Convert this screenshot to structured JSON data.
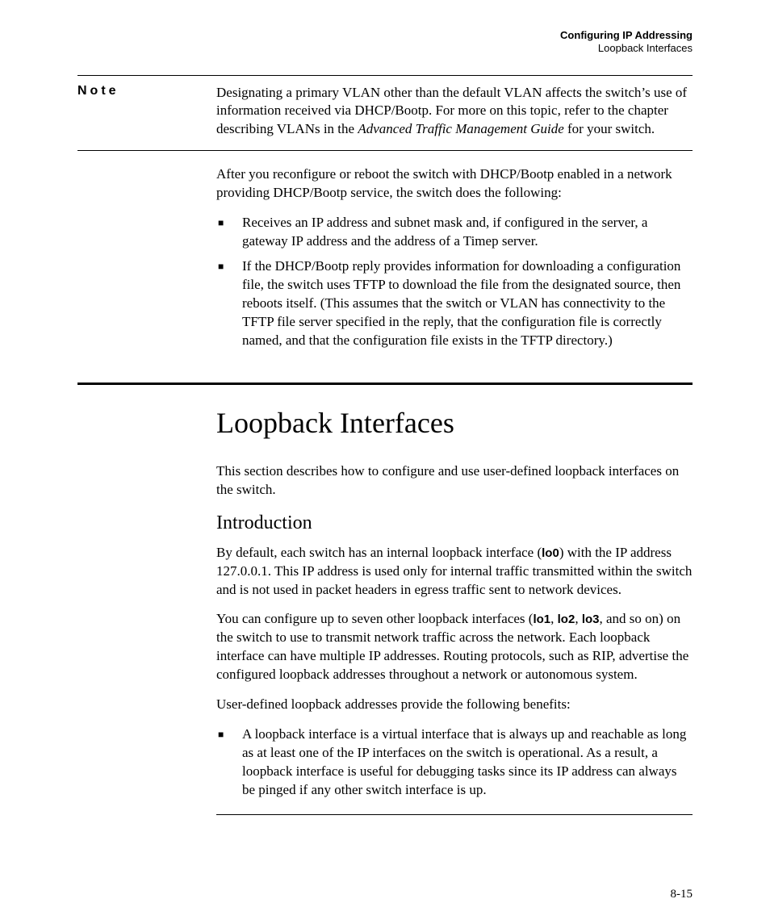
{
  "runhead": {
    "title": "Configuring IP Addressing",
    "subtitle": "Loopback Interfaces"
  },
  "note": {
    "label": "Note",
    "para_pre": "Designating a primary VLAN other than the default VLAN affects the switch’s use of information received via DHCP/Bootp. For more on this topic, refer to the chapter describing VLANs in the ",
    "para_em": "Advanced Traffic Management Guide",
    "para_post": " for your switch."
  },
  "body1": {
    "p1": "After you reconfigure or reboot the switch with DHCP/Bootp enabled in a network providing DHCP/Bootp service, the switch does the following:",
    "li1": "Receives an IP address and subnet mask and, if configured in the server, a gateway IP address and the address of a Timep server.",
    "li2": "If the DHCP/Bootp reply provides information for downloading a config­uration file, the switch uses TFTP to download the file from the designated source, then reboots itself. (This assumes that the switch or VLAN has connectivity to the TFTP file server specified in the reply, that the config­uration file is correctly named, and that the configuration file exists in the TFTP directory.)"
  },
  "section": {
    "title": "Loopback Interfaces",
    "lead": "This section describes how to configure and use user-defined loopback inter­faces on the switch.",
    "subtitle": "Introduction",
    "p2_pre": "By default, each switch has an internal loopback interface (",
    "p2_b1": "lo0",
    "p2_post": ") with the IP address 127.0.0.1. This IP address is used only for internal traffic transmitted within the switch and is not used in packet headers in egress traffic sent to network devices.",
    "p3_pre": "You can configure up to seven other loopback interfaces (",
    "p3_b1": "lo1",
    "p3_sep1": ", ",
    "p3_b2": "lo2",
    "p3_sep2": ", ",
    "p3_b3": "lo3",
    "p3_post": ", and so on) on the switch to use to transmit network traffic across the network. Each loopback interface can have multiple IP addresses. Routing protocols, such as RIP, advertise the configured loopback addresses throughout a network or autonomous system.",
    "p4": "User-defined loopback addresses provide the following benefits:",
    "li3": "A loopback interface is a virtual interface that is always up and reachable as long as at least one of the IP interfaces on the switch is operational. As a result, a loopback interface is useful for debugging tasks since its IP address can always be pinged if any other switch interface is up."
  },
  "pagenum": "8-15"
}
